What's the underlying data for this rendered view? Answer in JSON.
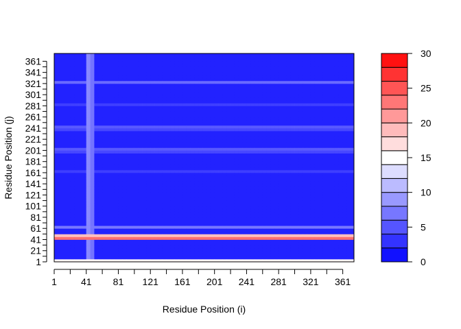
{
  "chart_data": {
    "type": "heatmap",
    "title": "",
    "xlabel": "Residue Position (i)",
    "ylabel": "Residue Position (j)",
    "xlim": [
      1,
      375
    ],
    "ylim": [
      1,
      375
    ],
    "x_ticks": [
      "1",
      "41",
      "81",
      "121",
      "161",
      "201",
      "241",
      "281",
      "321",
      "361"
    ],
    "y_ticks": [
      "1",
      "21",
      "41",
      "61",
      "81",
      "101",
      "121",
      "141",
      "161",
      "181",
      "201",
      "221",
      "241",
      "261",
      "281",
      "301",
      "321",
      "341",
      "361"
    ],
    "color_scale": {
      "min": 0,
      "max": 30,
      "step": 2,
      "low_color": "#0000ff",
      "mid_color": "#ffffff",
      "high_color": "#ff0000",
      "tick_labels": [
        "0",
        "5",
        "10",
        "15",
        "20",
        "25",
        "30"
      ]
    },
    "background_value": 2,
    "features": [
      {
        "kind": "row-band",
        "center": 45,
        "width": 8,
        "value": 27
      },
      {
        "kind": "row-band",
        "center": 2,
        "width": 3,
        "value": 24
      },
      {
        "kind": "column-band",
        "center": 45,
        "width": 10,
        "value": 9
      },
      {
        "kind": "row-band",
        "center": 322,
        "width": 5,
        "value": 8
      },
      {
        "kind": "row-band",
        "center": 242,
        "width": 8,
        "value": 6
      },
      {
        "kind": "row-band",
        "center": 202,
        "width": 8,
        "value": 6
      },
      {
        "kind": "row-band",
        "center": 64,
        "width": 3,
        "value": 8
      },
      {
        "kind": "row-band",
        "center": 282,
        "width": 4,
        "value": 5
      },
      {
        "kind": "row-band",
        "center": 162,
        "width": 4,
        "value": 5
      }
    ]
  }
}
